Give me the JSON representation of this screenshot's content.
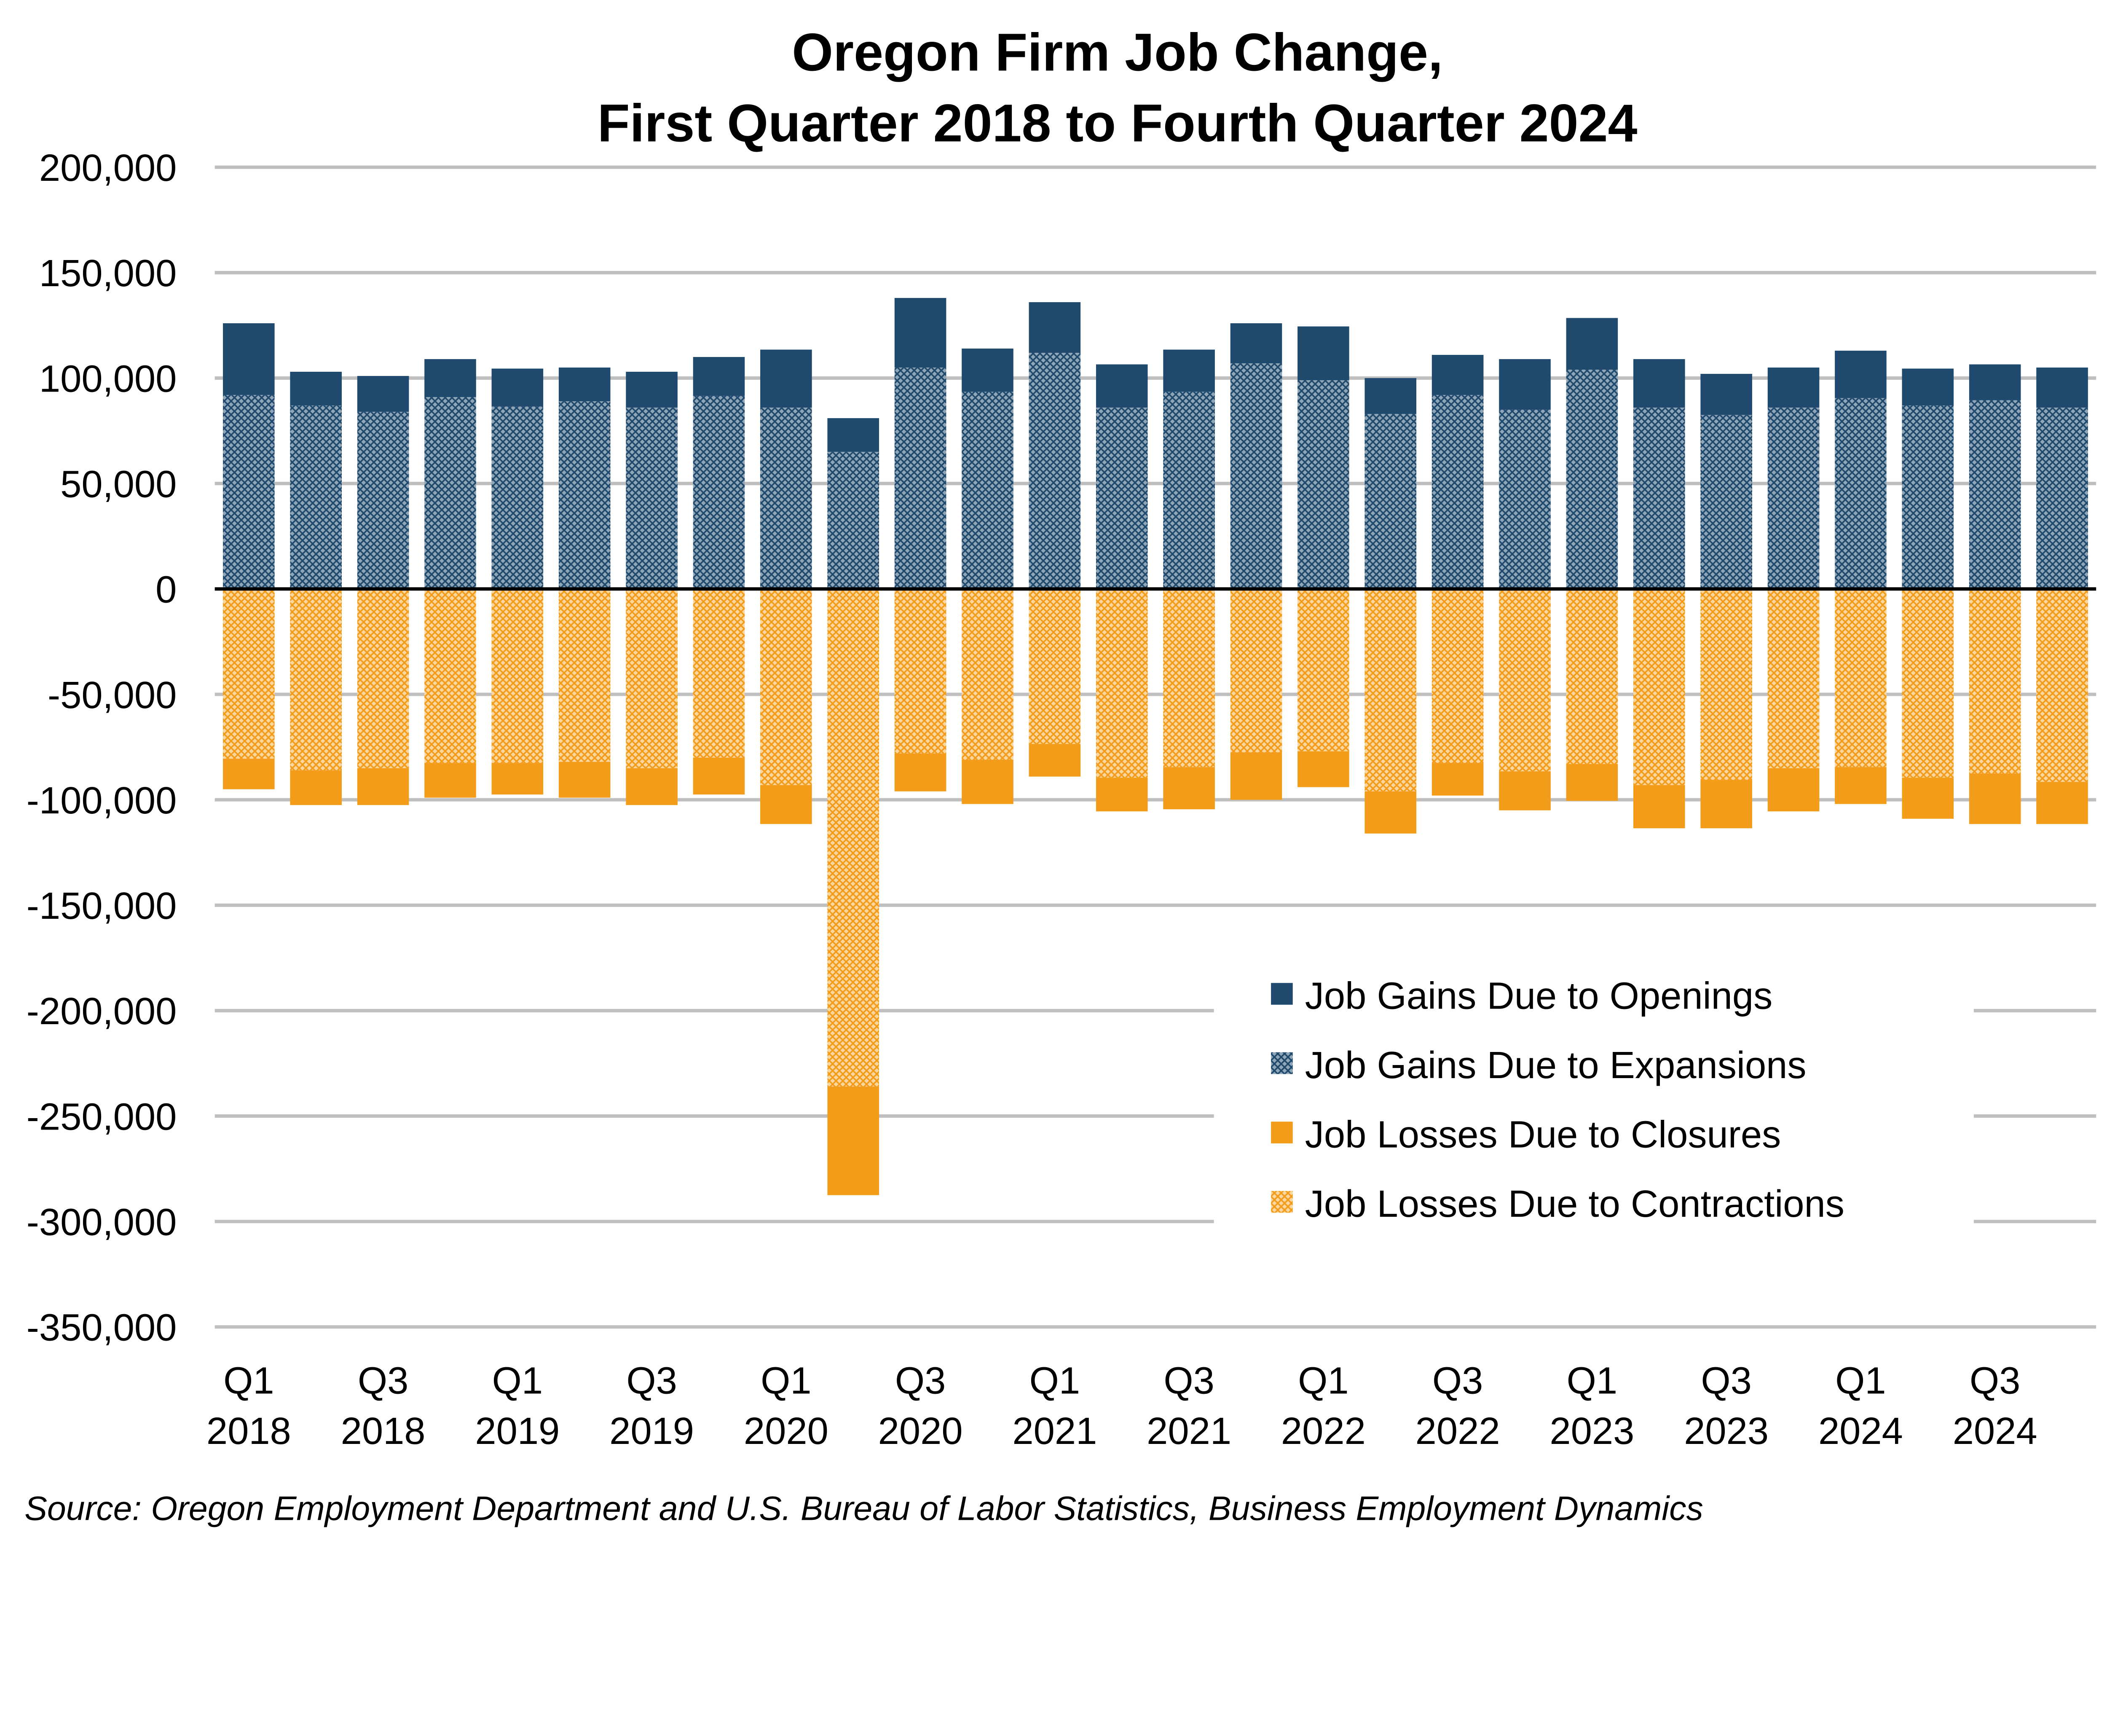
{
  "chart_data": {
    "type": "bar",
    "stacked": true,
    "title_lines": [
      "Oregon Firm Job Change,",
      "First Quarter 2018 to Fourth Quarter 2024"
    ],
    "source": "Source: Oregon Employment Department and U.S. Bureau of Labor Statistics, Business Employment Dynamics",
    "categories": [
      "Q1 2018",
      "Q2 2018",
      "Q3 2018",
      "Q4 2018",
      "Q1 2019",
      "Q2 2019",
      "Q3 2019",
      "Q4 2019",
      "Q1 2020",
      "Q2 2020",
      "Q3 2020",
      "Q4 2020",
      "Q1 2021",
      "Q2 2021",
      "Q3 2021",
      "Q4 2021",
      "Q1 2022",
      "Q2 2022",
      "Q3 2022",
      "Q4 2022",
      "Q1 2023",
      "Q2 2023",
      "Q3 2023",
      "Q4 2023",
      "Q1 2024",
      "Q2 2024",
      "Q3 2024",
      "Q4 2024"
    ],
    "x_tick_labels": [
      "Q1 2018",
      "Q3 2018",
      "Q1 2019",
      "Q3 2019",
      "Q1 2020",
      "Q3 2020",
      "Q1 2021",
      "Q3 2021",
      "Q1 2022",
      "Q3 2022",
      "Q1 2023",
      "Q3 2023",
      "Q1 2024",
      "Q3 2024"
    ],
    "ylim": [
      -350000,
      200000
    ],
    "y_ticks": [
      200000,
      150000,
      100000,
      50000,
      0,
      -50000,
      -100000,
      -150000,
      -200000,
      -250000,
      -300000,
      -350000
    ],
    "y_tick_labels": [
      "200,000",
      "150,000",
      "100,000",
      "50,000",
      "0",
      "-50,000",
      "-100,000",
      "-150,000",
      "-200,000",
      "-250,000",
      "-300,000",
      "-350,000"
    ],
    "grid": true,
    "legend_position": "bottom-right",
    "series": [
      {
        "name": "Job Gains Due to Openings",
        "color": "#1F4A6E",
        "pattern": "solid",
        "values": [
          34000,
          16000,
          17000,
          18000,
          18000,
          16000,
          17000,
          18500,
          27500,
          16000,
          33000,
          20500,
          24000,
          20500,
          20000,
          19000,
          25500,
          17000,
          19000,
          24000,
          24500,
          23000,
          19500,
          19000,
          22500,
          17500,
          17000,
          19000
        ]
      },
      {
        "name": "Job Gains Due to Expansions",
        "color": "#1F4A6E",
        "pattern": "crosshatch",
        "values": [
          92000,
          87000,
          84000,
          91000,
          86500,
          89000,
          86000,
          91500,
          86000,
          65000,
          105000,
          93500,
          112000,
          86000,
          93500,
          107000,
          99000,
          83000,
          92000,
          85000,
          104000,
          86000,
          82500,
          86000,
          90500,
          87000,
          89500,
          86000
        ]
      },
      {
        "name": "Job Losses Due to Closures",
        "color": "#F39C1A",
        "pattern": "solid",
        "values": [
          -14500,
          -16500,
          -17500,
          -16500,
          -15000,
          -17000,
          -17500,
          -17500,
          -18500,
          -51500,
          -18000,
          -21000,
          -15500,
          -16000,
          -20000,
          -22500,
          -17000,
          -20000,
          -15500,
          -18500,
          -17500,
          -20500,
          -23000,
          -20500,
          -17500,
          -19500,
          -24000,
          -20000
        ]
      },
      {
        "name": "Job Losses Due to Contractions",
        "color": "#F39C1A",
        "pattern": "crosshatch",
        "values": [
          -80500,
          -86000,
          -85000,
          -82500,
          -82500,
          -82000,
          -85000,
          -80000,
          -93000,
          -236000,
          -78000,
          -81000,
          -73500,
          -89500,
          -84500,
          -77500,
          -77000,
          -96000,
          -82500,
          -86500,
          -83000,
          -93000,
          -90500,
          -85000,
          -84500,
          -89500,
          -87500,
          -91500
        ]
      }
    ]
  }
}
